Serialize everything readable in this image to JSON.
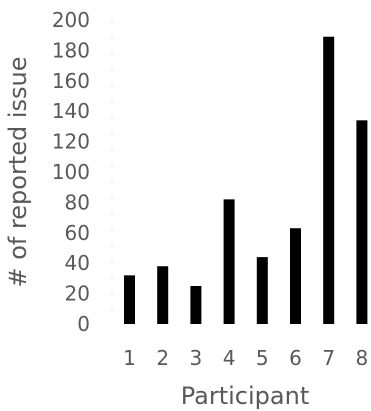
{
  "chart_data": {
    "type": "bar",
    "title": "",
    "xlabel": "Participant",
    "ylabel": "# of reported issue",
    "categories": [
      "1",
      "2",
      "3",
      "4",
      "5",
      "6",
      "7",
      "8"
    ],
    "values": [
      32,
      38,
      25,
      82,
      44,
      63,
      189,
      134
    ],
    "ylim": [
      0,
      200
    ],
    "yticks": [
      "0",
      "20",
      "40",
      "60",
      "80",
      "100",
      "120",
      "140",
      "160",
      "180",
      "200"
    ],
    "grid": false,
    "legend": "none",
    "bar_color": "#000000",
    "text_color": "#595959",
    "axis_color": "#d9d9d9"
  }
}
